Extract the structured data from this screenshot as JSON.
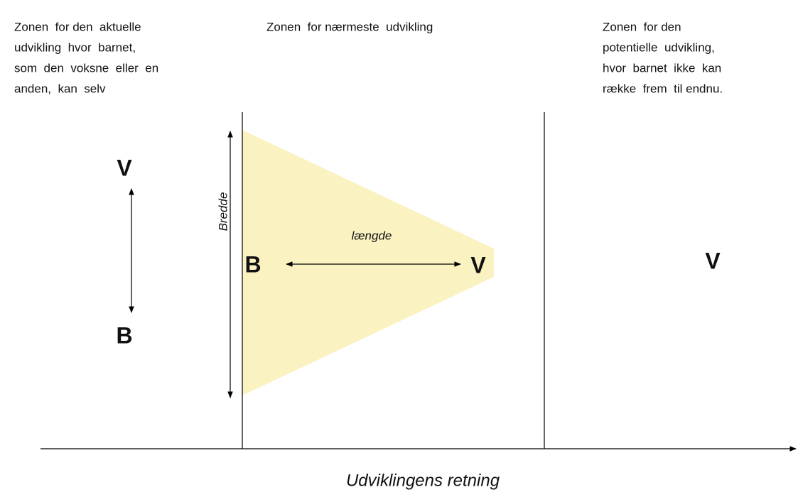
{
  "zones": [
    {
      "lines": [
        "Zonen  for den  aktuelle",
        "udvikling  hvor  barnet,",
        "som  den  voksne  eller  en",
        "anden,  kan  selv"
      ]
    },
    {
      "lines": [
        "Zonen  for nærmeste  udvikling"
      ]
    },
    {
      "lines": [
        "Zonen  for den",
        "potentielle  udvikling,",
        "hvor  barnet  ikke  kan",
        "række  frem  til endnu."
      ]
    }
  ],
  "left": {
    "top": "V",
    "bottom": "B"
  },
  "middle": {
    "width_label": "Bredde",
    "length_label": "længde",
    "start": "B",
    "end": "V"
  },
  "right": {
    "label": "V"
  },
  "axis_label": "Udviklingens retning"
}
